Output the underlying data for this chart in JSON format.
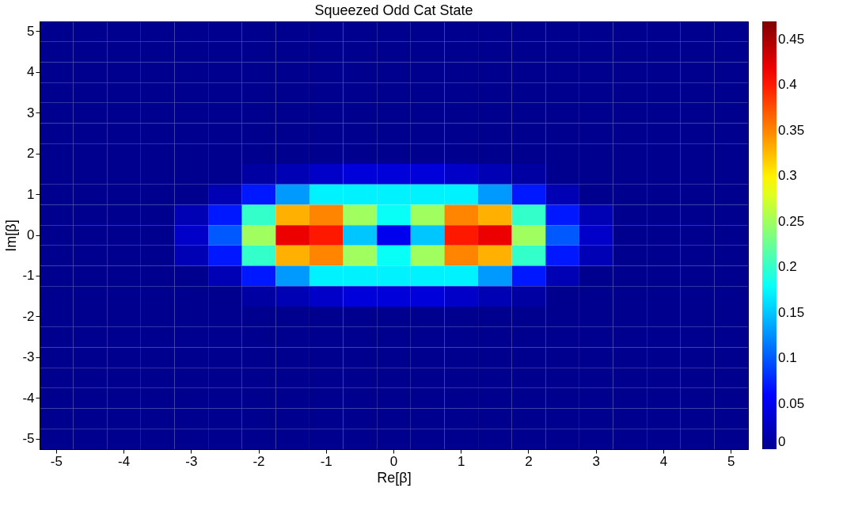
{
  "chart_data": {
    "type": "heatmap",
    "title": "Squeezed Odd Cat State",
    "xlabel": "Re[β]",
    "ylabel": "Im[β]",
    "categories": [
      "-5",
      null,
      "-4",
      null,
      "-3",
      null,
      "-2",
      null,
      "-1",
      null,
      "0",
      null,
      "1",
      null,
      "2",
      null,
      "3",
      null,
      "4",
      null,
      "5"
    ],
    "y_categories": [
      "5",
      null,
      "4",
      null,
      "3",
      null,
      "2",
      null,
      "1",
      null,
      "0",
      null,
      "-1",
      null,
      "-2",
      null,
      "-3",
      null,
      "-4",
      null,
      "-5"
    ],
    "cells": [
      [
        0,
        0,
        0,
        0,
        0,
        0,
        0,
        0,
        0,
        0,
        0,
        0,
        0,
        0,
        0,
        0,
        0,
        0,
        0,
        0,
        0
      ],
      [
        0,
        0,
        0,
        0,
        0,
        0,
        0,
        0,
        0,
        0,
        0,
        0,
        0,
        0,
        0,
        0,
        0,
        0,
        0,
        0,
        0
      ],
      [
        0,
        0,
        0,
        0,
        0,
        0,
        0,
        0,
        0,
        0,
        0,
        0,
        0,
        0,
        0,
        0,
        0,
        0,
        0,
        0,
        0
      ],
      [
        0,
        0,
        0,
        0,
        0,
        0,
        0,
        0,
        0,
        0,
        0,
        0,
        0,
        0,
        0,
        0,
        0,
        0,
        0,
        0,
        0
      ],
      [
        0,
        0,
        0,
        0,
        0,
        0,
        0,
        0,
        0,
        0,
        0,
        0,
        0,
        0,
        0,
        0,
        0,
        0,
        0,
        0,
        0
      ],
      [
        0,
        0,
        0,
        0,
        0,
        0,
        0,
        0,
        0,
        0,
        0,
        0,
        0,
        0,
        0,
        0,
        0,
        0,
        0,
        0,
        0
      ],
      [
        0,
        0,
        0,
        0,
        0,
        0,
        0,
        0,
        0,
        0,
        0,
        0,
        0,
        0,
        0,
        0,
        0,
        0,
        0,
        0,
        0
      ],
      [
        0,
        0,
        0,
        0,
        0,
        0,
        0.01,
        0.02,
        0.03,
        0.04,
        0.04,
        0.04,
        0.03,
        0.02,
        0.01,
        0,
        0,
        0,
        0,
        0,
        0
      ],
      [
        0,
        0,
        0,
        0,
        0,
        0.02,
        0.07,
        0.13,
        0.17,
        0.17,
        0.17,
        0.17,
        0.17,
        0.13,
        0.07,
        0.02,
        0,
        0,
        0,
        0,
        0
      ],
      [
        0,
        0,
        0,
        0,
        0.02,
        0.07,
        0.2,
        0.33,
        0.35,
        0.25,
        0.18,
        0.25,
        0.35,
        0.33,
        0.2,
        0.07,
        0.02,
        0,
        0,
        0,
        0
      ],
      [
        0,
        0,
        0,
        0,
        0.03,
        0.1,
        0.25,
        0.42,
        0.4,
        0.15,
        0.05,
        0.15,
        0.4,
        0.42,
        0.25,
        0.1,
        0.03,
        0,
        0,
        0,
        0
      ],
      [
        0,
        0,
        0,
        0,
        0.02,
        0.07,
        0.2,
        0.33,
        0.35,
        0.25,
        0.18,
        0.25,
        0.35,
        0.33,
        0.2,
        0.07,
        0.02,
        0,
        0,
        0,
        0
      ],
      [
        0,
        0,
        0,
        0,
        0,
        0.02,
        0.07,
        0.13,
        0.17,
        0.17,
        0.17,
        0.17,
        0.17,
        0.13,
        0.07,
        0.02,
        0,
        0,
        0,
        0,
        0
      ],
      [
        0,
        0,
        0,
        0,
        0,
        0,
        0.01,
        0.02,
        0.03,
        0.04,
        0.04,
        0.04,
        0.03,
        0.02,
        0.01,
        0,
        0,
        0,
        0,
        0,
        0
      ],
      [
        0,
        0,
        0,
        0,
        0,
        0,
        0,
        0,
        0,
        0,
        0,
        0,
        0,
        0,
        0,
        0,
        0,
        0,
        0,
        0,
        0
      ],
      [
        0,
        0,
        0,
        0,
        0,
        0,
        0,
        0,
        0,
        0,
        0,
        0,
        0,
        0,
        0,
        0,
        0,
        0,
        0,
        0,
        0
      ],
      [
        0,
        0,
        0,
        0,
        0,
        0,
        0,
        0,
        0,
        0,
        0,
        0,
        0,
        0,
        0,
        0,
        0,
        0,
        0,
        0,
        0
      ],
      [
        0,
        0,
        0,
        0,
        0,
        0,
        0,
        0,
        0,
        0,
        0,
        0,
        0,
        0,
        0,
        0,
        0,
        0,
        0,
        0,
        0
      ],
      [
        0,
        0,
        0,
        0,
        0,
        0,
        0,
        0,
        0,
        0,
        0,
        0,
        0,
        0,
        0,
        0,
        0,
        0,
        0,
        0,
        0
      ],
      [
        0,
        0,
        0,
        0,
        0,
        0,
        0,
        0,
        0,
        0,
        0,
        0,
        0,
        0,
        0,
        0,
        0,
        0,
        0,
        0,
        0
      ],
      [
        0,
        0,
        0,
        0,
        0,
        0,
        0,
        0,
        0,
        0,
        0,
        0,
        0,
        0,
        0,
        0,
        0,
        0,
        0,
        0,
        0
      ]
    ],
    "clim": [
      0,
      0.47
    ],
    "cticks": [
      0,
      0.05,
      0.1,
      0.15,
      0.2,
      0.25,
      0.3,
      0.35,
      0.4,
      0.45
    ],
    "colors": [
      "#00008f",
      "#0000ff",
      "#007fff",
      "#00ffff",
      "#7fff7f",
      "#ffff00",
      "#ff7f00",
      "#ff0000",
      "#7f0000"
    ],
    "grid": false
  }
}
